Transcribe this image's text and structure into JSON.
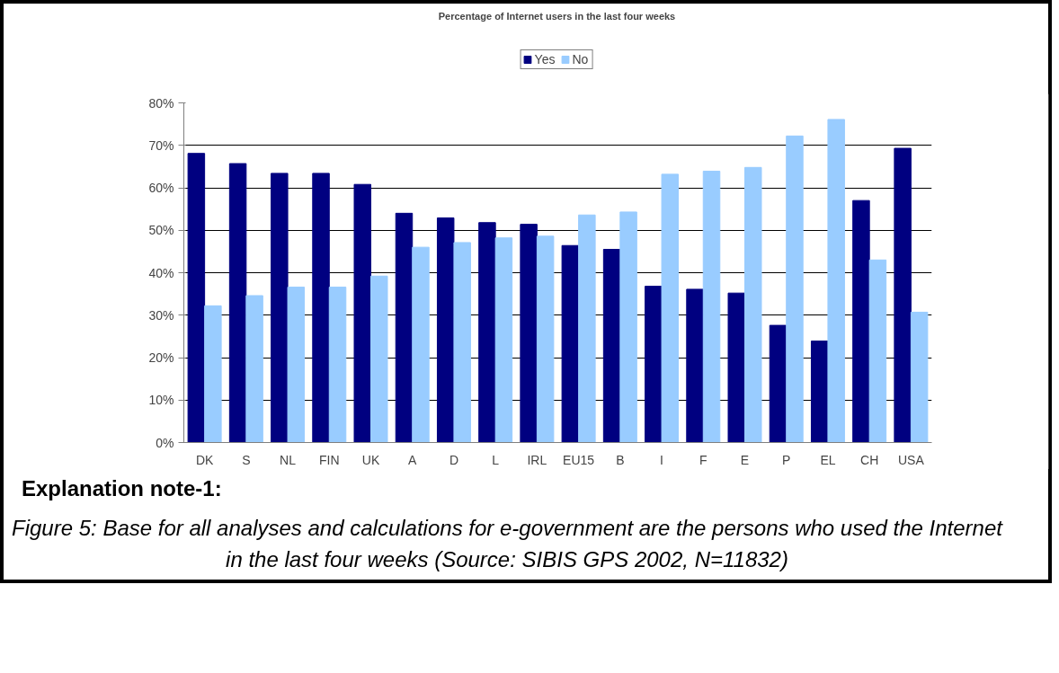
{
  "chart_data": {
    "type": "bar",
    "title": "Percentage of Internet users in the last four weeks",
    "categories": [
      "DK",
      "S",
      "NL",
      "FIN",
      "UK",
      "A",
      "D",
      "L",
      "IRL",
      "EU15",
      "B",
      "I",
      "F",
      "E",
      "P",
      "EL",
      "CH",
      "USA"
    ],
    "series": [
      {
        "name": "Yes",
        "color": "#000080",
        "values": [
          68.1,
          65.7,
          63.4,
          63.4,
          60.8,
          54.0,
          52.9,
          51.8,
          51.4,
          46.4,
          45.5,
          36.8,
          36.1,
          35.2,
          27.6,
          23.9,
          57.0,
          69.3
        ]
      },
      {
        "name": "No",
        "color": "#99ccff",
        "values": [
          32.2,
          34.6,
          36.6,
          36.6,
          39.2,
          46.0,
          47.1,
          48.2,
          48.6,
          53.6,
          54.3,
          63.2,
          63.9,
          64.8,
          72.2,
          76.1,
          43.0,
          30.7
        ]
      }
    ],
    "ylim": [
      0,
      80
    ],
    "yticks": [
      {
        "value": 0,
        "label": "0%"
      },
      {
        "value": 10,
        "label": "10%"
      },
      {
        "value": 20,
        "label": "20%"
      },
      {
        "value": 30,
        "label": "30%"
      },
      {
        "value": 40,
        "label": "40%"
      },
      {
        "value": 50,
        "label": "50%"
      },
      {
        "value": 60,
        "label": "60%"
      },
      {
        "value": 70,
        "label": "70%"
      },
      {
        "value": 80,
        "label": "80%"
      }
    ],
    "grid": "y",
    "legend": "top",
    "annotations": [
      "Explanation note-1:",
      "Figure 5: Base for all analyses and calculations for e-government are the persons who used the Internet in the last four weeks (Source: SIBIS GPS 2002, N=11832)"
    ]
  }
}
